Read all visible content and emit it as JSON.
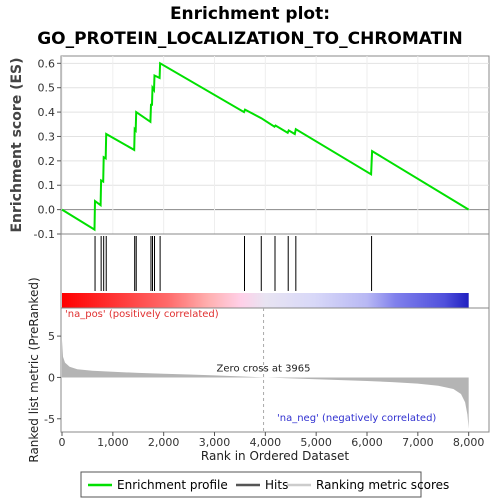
{
  "title_line1": "Enrichment plot:",
  "title_line2": "GO_PROTEIN_LOCALIZATION_TO_CHROMATIN",
  "colors": {
    "enrichment": "#00e000",
    "hits": "#000000",
    "metric_fill": "#b4b4b4",
    "pos_text": "#e03030",
    "neg_text": "#3030d0"
  },
  "chart_data": {
    "type": "line",
    "n_genes": 8000,
    "x_axis": {
      "label": "Rank in Ordered Dataset",
      "ticks": [
        0,
        1000,
        2000,
        3000,
        4000,
        5000,
        6000,
        7000,
        8000
      ],
      "tick_labels": [
        "0",
        "1,000",
        "2,000",
        "3,000",
        "4,000",
        "5,000",
        "6,000",
        "7,000",
        "8,000"
      ],
      "range": [
        0,
        8400
      ]
    },
    "es_panel": {
      "ylabel": "Enrichment score (ES)",
      "ylim": [
        -0.1,
        0.63
      ],
      "yticks": [
        -0.1,
        0.0,
        0.1,
        0.2,
        0.3,
        0.4,
        0.5,
        0.6
      ],
      "ytick_labels": [
        "-0.1",
        "0.0",
        "0.1",
        "0.2",
        "0.3",
        "0.4",
        "0.5",
        "0.6"
      ],
      "series_name": "Enrichment profile",
      "points": [
        [
          0,
          0.0
        ],
        [
          640,
          -0.082
        ],
        [
          650,
          0.035
        ],
        [
          760,
          0.018
        ],
        [
          770,
          0.12
        ],
        [
          810,
          0.115
        ],
        [
          820,
          0.215
        ],
        [
          860,
          0.21
        ],
        [
          870,
          0.31
        ],
        [
          1420,
          0.245
        ],
        [
          1430,
          0.33
        ],
        [
          1450,
          0.325
        ],
        [
          1460,
          0.4
        ],
        [
          1740,
          0.36
        ],
        [
          1750,
          0.43
        ],
        [
          1770,
          0.43
        ],
        [
          1780,
          0.5
        ],
        [
          1810,
          0.49
        ],
        [
          1820,
          0.55
        ],
        [
          1920,
          0.54
        ],
        [
          1930,
          0.6
        ],
        [
          3580,
          0.4
        ],
        [
          3600,
          0.41
        ],
        [
          3920,
          0.375
        ],
        [
          4180,
          0.34
        ],
        [
          4200,
          0.345
        ],
        [
          4440,
          0.315
        ],
        [
          4460,
          0.325
        ],
        [
          4580,
          0.31
        ],
        [
          4600,
          0.33
        ],
        [
          6080,
          0.145
        ],
        [
          6100,
          0.24
        ],
        [
          8000,
          0.0
        ]
      ]
    },
    "hits": {
      "series_name": "Hits",
      "ranks": [
        650,
        770,
        820,
        870,
        1430,
        1460,
        1750,
        1780,
        1820,
        1930,
        3590,
        3920,
        4190,
        4450,
        4600,
        6090
      ]
    },
    "metric_panel": {
      "ylabel": "Ranked list metric (PreRanked)",
      "series_name": "Ranking metric scores",
      "ylim": [
        -6.6,
        8.4
      ],
      "yticks": [
        -5,
        0,
        5
      ],
      "ytick_labels": [
        "-5",
        "0",
        "5"
      ],
      "zero_cross": 3965,
      "zero_cross_label": "Zero cross at 3965",
      "pos_label": "'na_pos' (positively correlated)",
      "neg_label": "'na_neg' (negatively correlated)",
      "profile": [
        [
          0,
          4.5
        ],
        [
          20,
          2.5
        ],
        [
          60,
          1.8
        ],
        [
          150,
          1.3
        ],
        [
          300,
          1.0
        ],
        [
          600,
          0.8
        ],
        [
          1000,
          0.68
        ],
        [
          1500,
          0.55
        ],
        [
          2000,
          0.45
        ],
        [
          2500,
          0.35
        ],
        [
          3000,
          0.25
        ],
        [
          3500,
          0.12
        ],
        [
          3965,
          0.0
        ],
        [
          4500,
          -0.12
        ],
        [
          5000,
          -0.22
        ],
        [
          5500,
          -0.32
        ],
        [
          6000,
          -0.43
        ],
        [
          6500,
          -0.56
        ],
        [
          7000,
          -0.75
        ],
        [
          7400,
          -1.0
        ],
        [
          7700,
          -1.4
        ],
        [
          7850,
          -2.0
        ],
        [
          7930,
          -3.0
        ],
        [
          7975,
          -4.5
        ],
        [
          8000,
          -6.2
        ]
      ]
    },
    "legend": [
      "Enrichment profile",
      "Hits",
      "Ranking metric scores"
    ],
    "legend_placement": "bottom"
  }
}
